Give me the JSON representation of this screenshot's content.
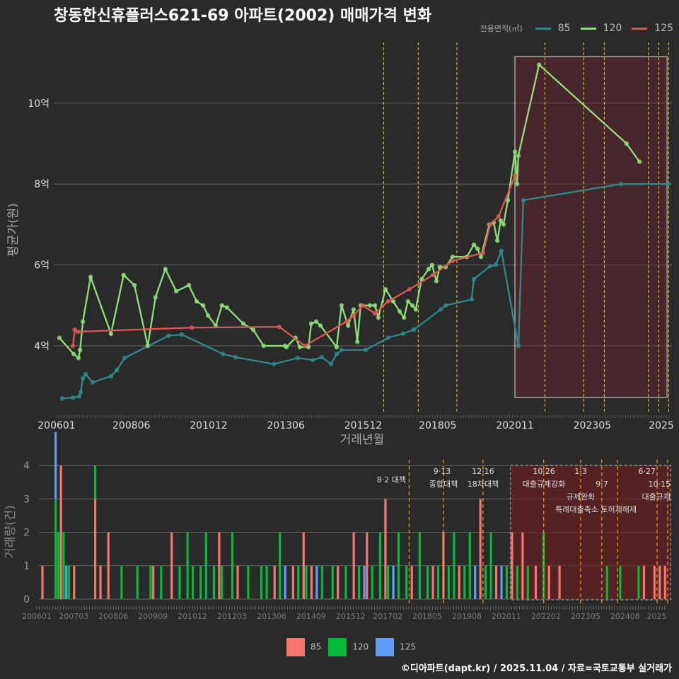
{
  "title": "창동한신휴플러스621-69 아파트(2002) 매매가격 변화",
  "legend": {
    "title": "전용면적(㎡)",
    "items": [
      {
        "label": "85",
        "line_color": "#2e8b8b",
        "bar_color": "#f8766d"
      },
      {
        "label": "120",
        "line_color": "#90e07a",
        "bar_color": "#00ba38"
      },
      {
        "label": "125",
        "line_color": "#e05555",
        "bar_color": "#619cff"
      }
    ]
  },
  "credit": "©디아파트(dapt.kr) / 2025.11.04 / 자료=국토교통부 실거래가",
  "chart_data": [
    {
      "type": "line",
      "xlabel": "거래년월",
      "ylabel": "평균가(원)",
      "x_unit": "decimal year",
      "xlim": [
        2006.0,
        2025.8
      ],
      "ylim": [
        2.4,
        11.5
      ],
      "yticks": [
        {
          "v": 4,
          "label": "4억"
        },
        {
          "v": 6,
          "label": "6억"
        },
        {
          "v": 8,
          "label": "8억"
        },
        {
          "v": 10,
          "label": "10억"
        }
      ],
      "xticks": [
        {
          "v": 2006.0,
          "label": "200601"
        },
        {
          "v": 2008.42,
          "label": "200806"
        },
        {
          "v": 2010.92,
          "label": "201012"
        },
        {
          "v": 2013.42,
          "label": "201306"
        },
        {
          "v": 2015.92,
          "label": "201512"
        },
        {
          "v": 2018.33,
          "label": "201805"
        },
        {
          "v": 2020.83,
          "label": "202011"
        },
        {
          "v": 2023.33,
          "label": "202305"
        },
        {
          "v": 2025.75,
          "label": "2025"
        }
      ],
      "policy_lines": [
        2016.58,
        2017.7,
        2018.95,
        2021.8,
        2023.05,
        2023.72,
        2025.15,
        2025.48,
        2025.8
      ],
      "highlight_range": [
        2020.83,
        2025.8
      ],
      "series": [
        {
          "name": "85",
          "points": [
            [
              2006.18,
              2.7
            ],
            [
              2006.53,
              2.72
            ],
            [
              2006.73,
              2.75
            ],
            [
              2006.78,
              2.85
            ],
            [
              2006.85,
              3.2
            ],
            [
              2006.94,
              3.3
            ],
            [
              2007.17,
              3.1
            ],
            [
              2007.76,
              3.25
            ],
            [
              2007.95,
              3.4
            ],
            [
              2008.2,
              3.7
            ],
            [
              2009.62,
              4.25
            ],
            [
              2010.05,
              4.28
            ],
            [
              2011.38,
              3.8
            ],
            [
              2011.79,
              3.72
            ],
            [
              2013.03,
              3.55
            ],
            [
              2013.8,
              3.7
            ],
            [
              2014.3,
              3.65
            ],
            [
              2014.58,
              3.72
            ],
            [
              2014.88,
              3.55
            ],
            [
              2015.06,
              3.8
            ],
            [
              2015.22,
              3.9
            ],
            [
              2016.0,
              3.9
            ],
            [
              2016.73,
              4.2
            ],
            [
              2017.21,
              4.3
            ],
            [
              2017.56,
              4.4
            ],
            [
              2018.43,
              4.9
            ],
            [
              2018.59,
              5.0
            ],
            [
              2019.43,
              5.15
            ],
            [
              2019.5,
              5.65
            ],
            [
              2020.03,
              5.97
            ],
            [
              2020.21,
              6.0
            ],
            [
              2020.39,
              6.35
            ],
            [
              2020.94,
              4.0
            ],
            [
              2021.1,
              7.6
            ],
            [
              2024.26,
              8.0
            ],
            [
              2025.79,
              8.0
            ]
          ]
        },
        {
          "name": "120",
          "points": [
            [
              2006.09,
              4.2
            ],
            [
              2006.55,
              3.8
            ],
            [
              2006.71,
              3.7
            ],
            [
              2006.76,
              3.9
            ],
            [
              2006.85,
              4.6
            ],
            [
              2007.1,
              5.7
            ],
            [
              2007.76,
              4.3
            ],
            [
              2008.17,
              5.75
            ],
            [
              2008.52,
              5.5
            ],
            [
              2008.95,
              4.0
            ],
            [
              2009.2,
              5.2
            ],
            [
              2009.52,
              5.9
            ],
            [
              2009.87,
              5.35
            ],
            [
              2010.28,
              5.5
            ],
            [
              2010.53,
              5.1
            ],
            [
              2010.74,
              5.0
            ],
            [
              2010.9,
              4.75
            ],
            [
              2011.15,
              4.5
            ],
            [
              2011.35,
              5.0
            ],
            [
              2011.51,
              4.95
            ],
            [
              2012.04,
              4.55
            ],
            [
              2012.36,
              4.4
            ],
            [
              2012.7,
              4.0
            ],
            [
              2013.39,
              4.0
            ],
            [
              2013.44,
              3.97
            ],
            [
              2013.73,
              4.2
            ],
            [
              2013.87,
              3.97
            ],
            [
              2014.15,
              3.97
            ],
            [
              2014.24,
              4.55
            ],
            [
              2014.4,
              4.6
            ],
            [
              2014.54,
              4.5
            ],
            [
              2015.06,
              3.97
            ],
            [
              2015.22,
              5.0
            ],
            [
              2015.43,
              4.5
            ],
            [
              2015.61,
              4.9
            ],
            [
              2015.73,
              4.1
            ],
            [
              2015.84,
              5.0
            ],
            [
              2016.14,
              5.0
            ],
            [
              2016.3,
              5.0
            ],
            [
              2016.41,
              4.7
            ],
            [
              2016.64,
              5.4
            ],
            [
              2016.89,
              5.1
            ],
            [
              2017.1,
              4.85
            ],
            [
              2017.24,
              4.7
            ],
            [
              2017.37,
              5.1
            ],
            [
              2017.51,
              5.0
            ],
            [
              2017.62,
              4.9
            ],
            [
              2017.81,
              5.65
            ],
            [
              2018.04,
              5.9
            ],
            [
              2018.15,
              6.0
            ],
            [
              2018.29,
              5.6
            ],
            [
              2018.4,
              5.95
            ],
            [
              2018.59,
              5.95
            ],
            [
              2018.81,
              6.2
            ],
            [
              2019.27,
              6.2
            ],
            [
              2019.5,
              6.5
            ],
            [
              2019.62,
              6.4
            ],
            [
              2019.73,
              6.2
            ],
            [
              2020.0,
              7.0
            ],
            [
              2020.14,
              7.05
            ],
            [
              2020.26,
              6.6
            ],
            [
              2020.37,
              7.1
            ],
            [
              2020.46,
              7.0
            ],
            [
              2020.6,
              7.6
            ],
            [
              2020.83,
              8.8
            ],
            [
              2020.9,
              8.0
            ],
            [
              2020.94,
              8.7
            ],
            [
              2021.61,
              10.95
            ],
            [
              2024.44,
              9.0
            ],
            [
              2024.86,
              8.55
            ]
          ]
        },
        {
          "name": "125",
          "points": [
            [
              2006.53,
              4.0
            ],
            [
              2006.59,
              4.4
            ],
            [
              2006.69,
              4.35
            ],
            [
              2010.37,
              4.45
            ],
            [
              2013.21,
              4.47
            ],
            [
              2014.03,
              4.0
            ],
            [
              2015.38,
              4.6
            ],
            [
              2015.61,
              4.75
            ],
            [
              2015.91,
              5.0
            ],
            [
              2016.3,
              4.8
            ],
            [
              2016.73,
              5.1
            ],
            [
              2017.42,
              5.4
            ],
            [
              2018.17,
              5.75
            ],
            [
              2018.81,
              6.1
            ],
            [
              2019.8,
              6.3
            ],
            [
              2020.03,
              7.0
            ],
            [
              2020.3,
              7.2
            ],
            [
              2020.83,
              8.2
            ]
          ]
        }
      ]
    },
    {
      "type": "bar",
      "ylabel": "거래량(건)",
      "x_unit": "months since 200601",
      "xlim": [
        -3,
        240
      ],
      "ylim": [
        0,
        4
      ],
      "yticks": [
        0,
        1,
        2,
        3,
        4
      ],
      "xticks": [
        {
          "v": 0,
          "label": "200601"
        },
        {
          "v": 14,
          "label": "200703"
        },
        {
          "v": 29,
          "label": "200806"
        },
        {
          "v": 44,
          "label": "200909"
        },
        {
          "v": 59,
          "label": "201012"
        },
        {
          "v": 74,
          "label": "201203"
        },
        {
          "v": 89,
          "label": "201306"
        },
        {
          "v": 104,
          "label": "201409"
        },
        {
          "v": 119,
          "label": "201512"
        },
        {
          "v": 133,
          "label": "201702"
        },
        {
          "v": 148,
          "label": "201805"
        },
        {
          "v": 163,
          "label": "201908"
        },
        {
          "v": 178,
          "label": "202011"
        },
        {
          "v": 193,
          "label": "202202"
        },
        {
          "v": 208,
          "label": "202305"
        },
        {
          "v": 223,
          "label": "202408"
        },
        {
          "v": 235,
          "label": "2025"
        }
      ],
      "highlight_range": [
        179,
        240
      ],
      "policies": [
        {
          "m": 139,
          "date": "",
          "label": "8·2 대책"
        },
        {
          "m": 152,
          "date": "9·13",
          "label": "종합대책"
        },
        {
          "m": 167,
          "date": "12·16",
          "label": "18차대책"
        },
        {
          "m": 190,
          "date": "10·26",
          "label": "대출규제강화"
        },
        {
          "m": 204,
          "date": "1·3",
          "label": "규제완화"
        },
        {
          "m": 212,
          "date": "",
          "label": "9·7"
        },
        {
          "m": 218,
          "date": "",
          "label": "특례대출축소 토허제해제"
        },
        {
          "m": 233,
          "date": "6·27",
          "label": "대출규제"
        },
        {
          "m": 237,
          "date": "10·15",
          "label": ""
        }
      ],
      "bars": [
        [
          0,
          "85",
          1
        ],
        [
          5,
          "120",
          3
        ],
        [
          5,
          "125",
          2
        ],
        [
          6,
          "120",
          2
        ],
        [
          7,
          "85",
          4
        ],
        [
          8,
          "120",
          2
        ],
        [
          9,
          "125",
          1
        ],
        [
          10,
          "120",
          1
        ],
        [
          12,
          "85",
          1
        ],
        [
          20,
          "85",
          3
        ],
        [
          20,
          "120",
          1
        ],
        [
          22,
          "85",
          1
        ],
        [
          25,
          "85",
          2
        ],
        [
          30,
          "120",
          1
        ],
        [
          36,
          "120",
          1
        ],
        [
          41,
          "120",
          1
        ],
        [
          42,
          "85",
          1
        ],
        [
          45,
          "120",
          1
        ],
        [
          49,
          "85",
          2
        ],
        [
          52,
          "120",
          1
        ],
        [
          55,
          "120",
          2
        ],
        [
          57,
          "120",
          1
        ],
        [
          60,
          "120",
          1
        ],
        [
          62,
          "120",
          2
        ],
        [
          65,
          "120",
          1
        ],
        [
          67,
          "85",
          2
        ],
        [
          68,
          "120",
          1
        ],
        [
          72,
          "120",
          2
        ],
        [
          74,
          "85",
          1
        ],
        [
          78,
          "120",
          1
        ],
        [
          83,
          "120",
          1
        ],
        [
          85,
          "120",
          1
        ],
        [
          88,
          "85",
          1
        ],
        [
          90,
          "120",
          2
        ],
        [
          92,
          "125",
          1
        ],
        [
          95,
          "85",
          1
        ],
        [
          97,
          "120",
          1
        ],
        [
          99,
          "85",
          2
        ],
        [
          100,
          "120",
          1
        ],
        [
          102,
          "85",
          1
        ],
        [
          104,
          "125",
          1
        ],
        [
          106,
          "120",
          1
        ],
        [
          110,
          "120",
          1
        ],
        [
          112,
          "85",
          1
        ],
        [
          115,
          "120",
          1
        ],
        [
          118,
          "85",
          2
        ],
        [
          120,
          "120",
          1
        ],
        [
          122,
          "125",
          1
        ],
        [
          123,
          "85",
          2
        ],
        [
          125,
          "120",
          1
        ],
        [
          128,
          "120",
          2
        ],
        [
          130,
          "85",
          3
        ],
        [
          131,
          "120",
          1
        ],
        [
          133,
          "125",
          1
        ],
        [
          135,
          "120",
          2
        ],
        [
          138,
          "120",
          1
        ],
        [
          140,
          "85",
          1
        ],
        [
          143,
          "120",
          2
        ],
        [
          146,
          "120",
          1
        ],
        [
          148,
          "85",
          1
        ],
        [
          150,
          "120",
          1
        ],
        [
          152,
          "85",
          2
        ],
        [
          154,
          "120",
          1
        ],
        [
          156,
          "120",
          2
        ],
        [
          158,
          "85",
          1
        ],
        [
          160,
          "120",
          1
        ],
        [
          162,
          "120",
          2
        ],
        [
          164,
          "125",
          1
        ],
        [
          166,
          "85",
          3
        ],
        [
          168,
          "120",
          1
        ],
        [
          170,
          "120",
          2
        ],
        [
          172,
          "85",
          1
        ],
        [
          174,
          "125",
          1
        ],
        [
          176,
          "120",
          1
        ],
        [
          178,
          "85",
          2
        ],
        [
          180,
          "120",
          1
        ],
        [
          182,
          "85",
          2
        ],
        [
          184,
          "120",
          1
        ],
        [
          187,
          "85",
          1
        ],
        [
          190,
          "120",
          2
        ],
        [
          192,
          "85",
          1
        ],
        [
          196,
          "85",
          1
        ],
        [
          214,
          "120",
          1
        ],
        [
          219,
          "120",
          1
        ],
        [
          226,
          "120",
          1
        ],
        [
          228,
          "85",
          1
        ],
        [
          232,
          "85",
          1
        ],
        [
          234,
          "85",
          1
        ],
        [
          236,
          "85",
          1
        ]
      ]
    }
  ]
}
